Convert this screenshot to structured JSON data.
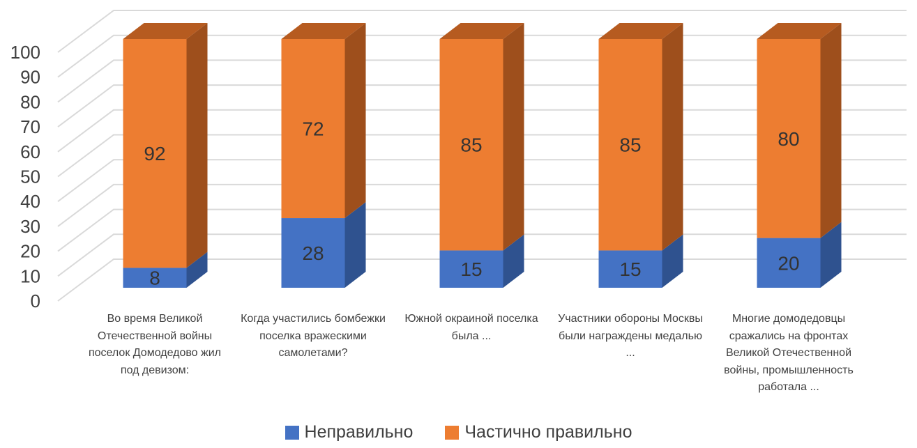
{
  "chart_data": {
    "type": "bar",
    "stacked": true,
    "three_d": true,
    "title": "",
    "xlabel": "",
    "ylabel": "",
    "ylim": [
      0,
      100
    ],
    "yticks": [
      "0",
      "10",
      "20",
      "30",
      "40",
      "50",
      "60",
      "70",
      "80",
      "90",
      "100"
    ],
    "grid": true,
    "legend_position": "bottom",
    "categories": [
      "Во время Великой Отечественной войны поселок Домодедово жил под девизом:",
      "Когда участились бомбежки поселка вражескими самолетами?",
      "Южной окраиной поселка была ...",
      "Участники обороны Москвы были награждены медалью ...",
      "Многие домодедовцы сражались на фронтах Великой Отечественной войны, промышленность работала ..."
    ],
    "series": [
      {
        "name": "Неправильно",
        "values": [
          8,
          28,
          15,
          15,
          20
        ],
        "color": "#4472C4",
        "side_color": "#2F528F",
        "top_color": "#3A64AE"
      },
      {
        "name": "Частично правильно",
        "values": [
          92,
          72,
          85,
          85,
          80
        ],
        "color": "#ED7D31",
        "side_color": "#9E4F1C",
        "top_color": "#B65B20"
      }
    ]
  }
}
